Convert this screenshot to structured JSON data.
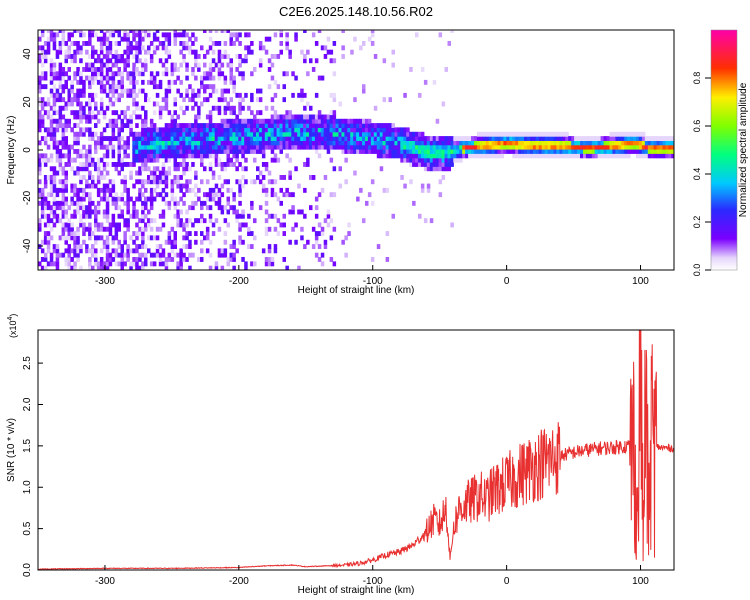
{
  "title": "C2E6.2025.148.10.56.R02",
  "colors": {
    "line": "#e83030",
    "spectrogram_low": "#c9a8f5",
    "spectrogram_mid": "#7a00ff",
    "background": "#ffffff",
    "axis": "#000000"
  },
  "chart_data": [
    {
      "type": "heatmap",
      "xlabel": "Height of straight line (km)",
      "ylabel": "Frequency (Hz)",
      "xlim": [
        -350,
        125
      ],
      "ylim": [
        -50,
        50
      ],
      "xticks": [
        -300,
        -200,
        -100,
        0,
        100
      ],
      "xtick_labels": [
        "-300",
        "-200",
        "-100",
        "0",
        "100"
      ],
      "yticks": [
        -40,
        -20,
        0,
        20,
        40
      ],
      "ytick_labels": [
        "-40",
        "-20",
        "0",
        "20",
        "40"
      ],
      "colorbar": {
        "label": "Normalized spectral amplitude",
        "range": [
          0,
          1
        ],
        "ticks": [
          0.0,
          0.2,
          0.4,
          0.6,
          0.8
        ],
        "tick_labels": [
          "0.0",
          "0.2",
          "0.4",
          "0.6",
          "0.8"
        ],
        "colormap": "rainbow (white-violet-blue-cyan-green-yellow-red-magenta)"
      },
      "description": "Broad noisy spectral content across all frequencies for heights below about -130 km; a concentrated band near 0 Hz; strong peak amplitude (~0.9) near 0-2 Hz from about -30 km to 125 km",
      "ridge": {
        "x": [
          -270,
          -250,
          -220,
          -190,
          -160,
          -130,
          -100,
          -80,
          -60,
          -45,
          -35,
          -20,
          0,
          20,
          40,
          60,
          80,
          95,
          105,
          125
        ],
        "y": [
          1,
          3,
          4,
          5,
          7,
          6,
          4,
          2,
          -2,
          -2,
          0,
          1,
          2,
          1,
          1,
          0,
          1,
          2,
          0,
          0
        ]
      },
      "grid": false
    },
    {
      "type": "line",
      "xlabel": "Height of straight line (km)",
      "ylabel": "SNR (10 * v/v)",
      "y_multiplier_label": "(x10",
      "y_multiplier_exp": "4",
      "y_multiplier_close": ")",
      "xlim": [
        -350,
        125
      ],
      "ylim": [
        0,
        2.9
      ],
      "xticks": [
        -300,
        -200,
        -100,
        0,
        100
      ],
      "xtick_labels": [
        "-300",
        "-200",
        "-100",
        "0",
        "100"
      ],
      "yticks": [
        0.0,
        0.5,
        1.0,
        1.5,
        2.0,
        2.5
      ],
      "ytick_labels": [
        "0.0",
        "0.5",
        "1.0",
        "1.5",
        "2.0",
        "2.5"
      ],
      "series": [
        {
          "x": [
            -350,
            -300,
            -250,
            -200,
            -180,
            -160,
            -150,
            -120,
            -110,
            -100,
            -90,
            -80,
            -70,
            -60,
            -55,
            -50,
            -45,
            -42,
            -40,
            -35,
            -30,
            -25,
            -20,
            -15,
            -10,
            -5,
            0,
            10,
            20,
            30,
            40,
            50,
            60,
            70,
            80,
            90,
            95,
            98,
            100,
            102,
            104,
            106,
            108,
            110,
            115,
            125
          ],
          "y": [
            0.01,
            0.02,
            0.02,
            0.03,
            0.05,
            0.06,
            0.04,
            0.06,
            0.08,
            0.12,
            0.18,
            0.22,
            0.3,
            0.45,
            0.6,
            0.55,
            0.75,
            0.1,
            0.5,
            0.75,
            0.8,
            0.85,
            0.9,
            0.85,
            0.95,
            1.0,
            1.05,
            1.15,
            1.25,
            1.32,
            1.38,
            1.42,
            1.45,
            1.47,
            1.48,
            1.5,
            1.5,
            0.6,
            2.8,
            0.3,
            2.2,
            0.5,
            1.6,
            1.5,
            1.48,
            1.47
          ]
        }
      ],
      "grid": false
    }
  ]
}
